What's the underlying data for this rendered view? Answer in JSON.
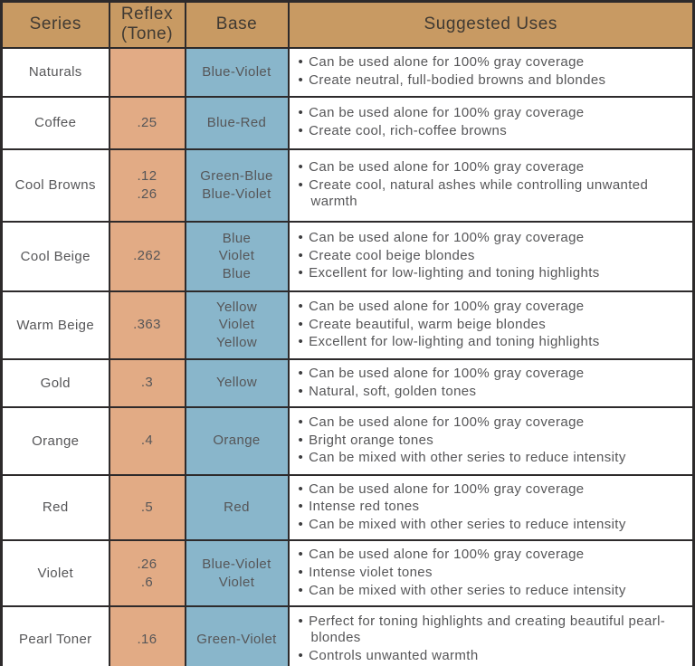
{
  "colors": {
    "header_bg": "#C89A63",
    "reflex_column_bg": "#E2AB85",
    "base_column_bg": "#89B6CB",
    "border": "#2D2A2B",
    "body_text": "#565658",
    "header_text": "#403A33"
  },
  "table": {
    "headers": [
      {
        "label": "Series"
      },
      {
        "label": "Reflex (Tone)"
      },
      {
        "label": "Base"
      },
      {
        "label": "Suggested Uses"
      }
    ],
    "rows": [
      {
        "series": "Naturals",
        "reflex": [],
        "base": [
          "Blue-Violet"
        ],
        "uses": [
          "Can be used alone for 100% gray coverage",
          "Create neutral, full-bodied browns and blondes"
        ]
      },
      {
        "series": "Coffee",
        "reflex": [
          ".25"
        ],
        "base": [
          "Blue-Red"
        ],
        "uses": [
          "Can be used alone for 100% gray coverage",
          "Create cool, rich-coffee browns"
        ]
      },
      {
        "series": "Cool Browns",
        "reflex": [
          ".12",
          ".26"
        ],
        "base": [
          "Green-Blue",
          "Blue-Violet"
        ],
        "uses": [
          "Can be used alone for 100% gray coverage",
          "Create cool, natural ashes while controlling unwanted warmth"
        ]
      },
      {
        "series": "Cool Beige",
        "reflex": [
          ".262"
        ],
        "base": [
          "Blue",
          "Violet",
          "Blue"
        ],
        "uses": [
          "Can be used alone for 100% gray coverage",
          "Create cool beige blondes",
          "Excellent for low-lighting and toning highlights"
        ]
      },
      {
        "series": "Warm Beige",
        "reflex": [
          ".363"
        ],
        "base": [
          "Yellow",
          "Violet",
          "Yellow"
        ],
        "uses": [
          "Can be used alone for 100% gray coverage",
          "Create beautiful, warm beige blondes",
          "Excellent for low-lighting and toning highlights"
        ]
      },
      {
        "series": "Gold",
        "reflex": [
          ".3"
        ],
        "base": [
          "Yellow"
        ],
        "uses": [
          "Can be used alone for 100% gray coverage",
          "Natural, soft, golden tones"
        ]
      },
      {
        "series": "Orange",
        "reflex": [
          ".4"
        ],
        "base": [
          "Orange"
        ],
        "uses": [
          "Can be used alone for 100% gray coverage",
          "Bright orange tones",
          "Can be mixed with other series to reduce intensity"
        ]
      },
      {
        "series": "Red",
        "reflex": [
          ".5"
        ],
        "base": [
          "Red"
        ],
        "uses": [
          "Can be used alone for 100% gray coverage",
          "Intense red tones",
          "Can be mixed with other series to reduce intensity"
        ]
      },
      {
        "series": "Violet",
        "reflex": [
          ".26",
          ".6"
        ],
        "base": [
          "Blue-Violet",
          "Violet"
        ],
        "uses": [
          "Can be used alone for 100% gray coverage",
          "Intense violet tones",
          "Can be mixed with other series to reduce intensity"
        ]
      },
      {
        "series": "Pearl Toner",
        "reflex": [
          ".16"
        ],
        "base": [
          "Green-Violet"
        ],
        "uses": [
          "Perfect for toning highlights and creating beautiful pearl-blondes",
          "Controls unwanted warmth"
        ]
      }
    ]
  }
}
